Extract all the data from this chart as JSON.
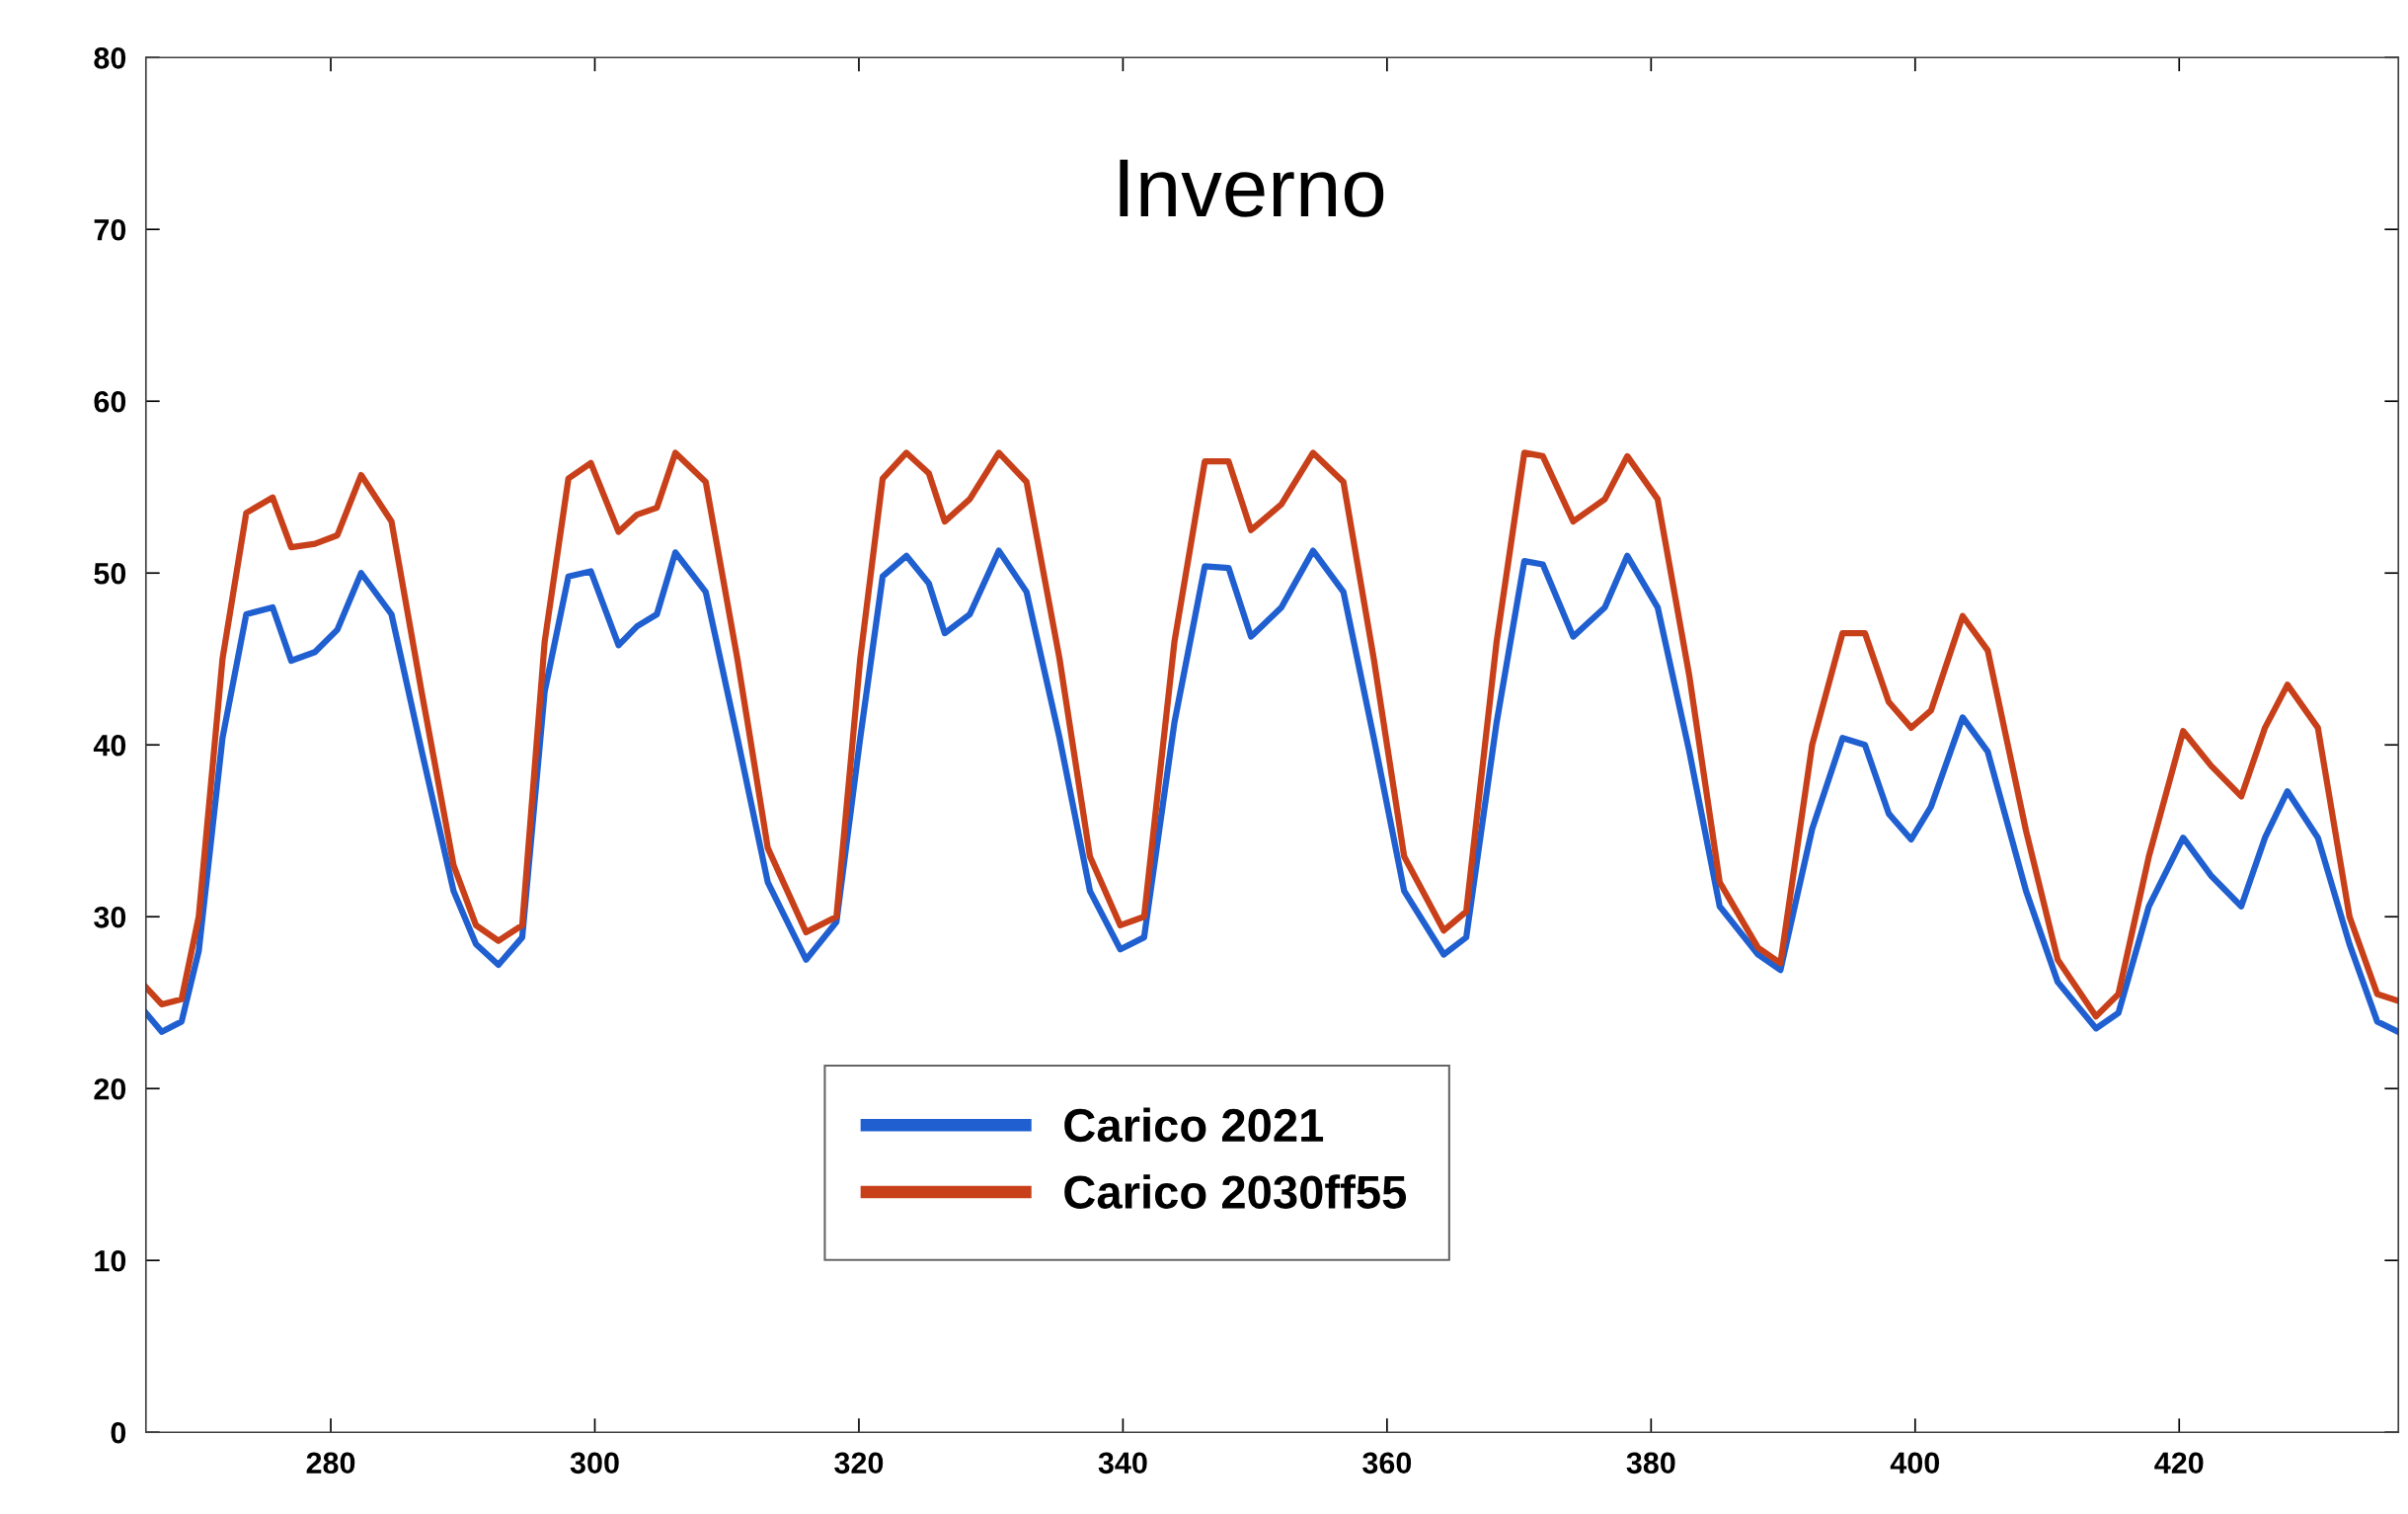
{
  "chart_data": {
    "type": "line",
    "title": "Inverno",
    "xlim": [
      266,
      436.6
    ],
    "xticks": [
      280,
      300,
      320,
      340,
      360,
      380,
      400,
      420
    ],
    "ylim": [
      0,
      80
    ],
    "yticks": [
      0,
      10,
      20,
      30,
      40,
      50,
      60,
      70,
      80
    ],
    "grid": false,
    "legend": "bottom",
    "marker": "none",
    "line_style": "solid",
    "x": [
      266,
      267.2,
      268.7,
      270,
      271.8,
      273.6,
      275.6,
      277,
      278.8,
      280.5,
      282.3,
      284.6,
      286.9,
      289.3,
      291,
      292.7,
      294.5,
      296.2,
      298,
      299.7,
      301.8,
      303.2,
      304.7,
      306.1,
      308.4,
      310.8,
      313.1,
      316,
      318.3,
      320.1,
      321.8,
      323.6,
      325.3,
      326.5,
      328.4,
      330.6,
      332.7,
      335.2,
      337.5,
      339.8,
      341.6,
      343.9,
      346.2,
      348,
      349.7,
      352,
      354.4,
      356.7,
      359,
      361.3,
      364.3,
      366,
      368.3,
      370.4,
      371.8,
      374.1,
      376.5,
      378.2,
      380.5,
      382.9,
      385.2,
      388.1,
      389.8,
      392.2,
      394.5,
      396.2,
      398,
      399.7,
      401.2,
      403.6,
      405.5,
      408.4,
      410.8,
      413.7,
      415.4,
      417.7,
      420.3,
      422.4,
      424.7,
      426.5,
      428.2,
      430.5,
      432.9,
      435,
      436.6
    ],
    "series": [
      {
        "name": "Carico 2021",
        "color": "#1f5fd0",
        "values": [
          24.4,
          23.3,
          23.9,
          28,
          40.4,
          47.6,
          48.0,
          44.9,
          45.4,
          46.7,
          50.0,
          47.6,
          39.6,
          31.5,
          28.4,
          27.2,
          28.8,
          43.1,
          49.8,
          50.1,
          45.8,
          46.9,
          47.6,
          51.2,
          48.9,
          40.4,
          32.0,
          27.5,
          29.7,
          40.4,
          49.8,
          51.0,
          49.4,
          46.5,
          47.6,
          51.3,
          48.9,
          40.4,
          31.5,
          28.1,
          28.8,
          41.3,
          50.4,
          50.3,
          46.3,
          48.0,
          51.3,
          48.9,
          40.4,
          31.5,
          27.8,
          28.8,
          41.3,
          50.7,
          50.5,
          46.3,
          48.0,
          51.0,
          48.0,
          39.6,
          30.6,
          27.8,
          26.9,
          35.1,
          40.4,
          40.0,
          36.0,
          34.5,
          36.4,
          41.6,
          39.6,
          31.5,
          26.2,
          23.5,
          24.4,
          30.6,
          34.6,
          32.4,
          30.6,
          34.6,
          37.3,
          34.6,
          28.4,
          23.9,
          23.3
        ]
      },
      {
        "name": "Carico 2030ff55",
        "color": "#c8401a",
        "values": [
          25.9,
          24.9,
          25.2,
          30,
          45,
          53.5,
          54.4,
          51.5,
          51.7,
          52.2,
          55.7,
          53,
          43,
          33,
          29.5,
          28.6,
          29.5,
          46,
          55.5,
          56.4,
          52.4,
          53.4,
          53.8,
          57.0,
          55.3,
          45,
          34,
          29.1,
          30,
          45,
          55.5,
          57.0,
          55.8,
          53,
          54.3,
          57.0,
          55.3,
          45,
          33.5,
          29.5,
          30,
          46,
          56.5,
          56.5,
          52.5,
          54,
          57.0,
          55.3,
          45,
          33.5,
          29.2,
          30.3,
          46,
          57,
          56.8,
          53,
          54.3,
          56.8,
          54.3,
          44,
          32,
          28.2,
          27.3,
          40,
          46.5,
          46.5,
          42.5,
          41,
          42,
          47.5,
          45.5,
          35,
          27.5,
          24.2,
          25.5,
          33.5,
          40.8,
          38.8,
          37,
          41,
          43.5,
          41,
          30,
          25.5,
          25.1
        ]
      }
    ]
  }
}
